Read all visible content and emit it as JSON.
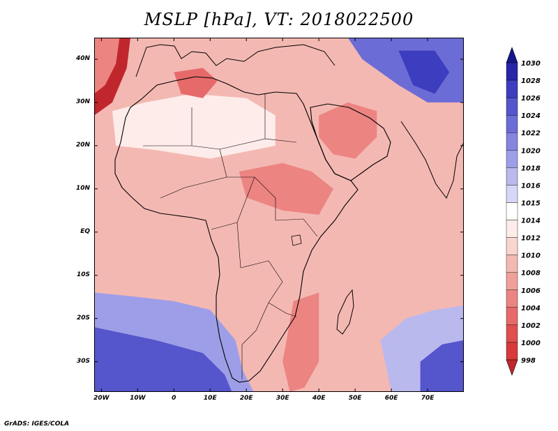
{
  "title": "MSLP [hPa], VT: 2018022500",
  "credit": "GrADS: IGES/COLA",
  "map": {
    "lon_range": [
      -22,
      80
    ],
    "lat_range": [
      -37,
      45
    ],
    "lon_ticks": [
      {
        "value": -20,
        "label": "20W"
      },
      {
        "value": -10,
        "label": "10W"
      },
      {
        "value": 0,
        "label": "0"
      },
      {
        "value": 10,
        "label": "10E"
      },
      {
        "value": 20,
        "label": "20E"
      },
      {
        "value": 30,
        "label": "30E"
      },
      {
        "value": 40,
        "label": "40E"
      },
      {
        "value": 50,
        "label": "50E"
      },
      {
        "value": 60,
        "label": "60E"
      },
      {
        "value": 70,
        "label": "70E"
      }
    ],
    "lat_ticks": [
      {
        "value": 40,
        "label": "40N"
      },
      {
        "value": 30,
        "label": "30N"
      },
      {
        "value": 20,
        "label": "20N"
      },
      {
        "value": 10,
        "label": "10N"
      },
      {
        "value": 0,
        "label": "EQ"
      },
      {
        "value": -10,
        "label": "10S"
      },
      {
        "value": -20,
        "label": "20S"
      },
      {
        "value": -30,
        "label": "30S"
      }
    ],
    "base_level": 1010,
    "regions": [
      {
        "name": "ocean-low-nw",
        "level": 998,
        "points": [
          [
            -22,
            45
          ],
          [
            -12,
            45
          ],
          [
            -13,
            38
          ],
          [
            -17,
            30
          ],
          [
            -22,
            27
          ]
        ]
      },
      {
        "name": "ocean-low-nw-inner",
        "level": 1006,
        "points": [
          [
            -22,
            45
          ],
          [
            -15,
            45
          ],
          [
            -16,
            39
          ],
          [
            -19,
            34
          ],
          [
            -22,
            32
          ]
        ]
      },
      {
        "name": "south-atlantic-high",
        "level": 1020,
        "points": [
          [
            -22,
            -14
          ],
          [
            -10,
            -15
          ],
          [
            0,
            -16
          ],
          [
            10,
            -18
          ],
          [
            17,
            -25
          ],
          [
            19,
            -32
          ],
          [
            22,
            -37
          ],
          [
            -22,
            -37
          ]
        ]
      },
      {
        "name": "south-atlantic-high-inner",
        "level": 1026,
        "points": [
          [
            -22,
            -22
          ],
          [
            -5,
            -25
          ],
          [
            8,
            -28
          ],
          [
            14,
            -33
          ],
          [
            16,
            -37
          ],
          [
            -22,
            -37
          ]
        ]
      },
      {
        "name": "indian-ocean-high",
        "level": 1018,
        "points": [
          [
            60,
            -37
          ],
          [
            57,
            -25
          ],
          [
            64,
            -20
          ],
          [
            72,
            -18
          ],
          [
            80,
            -17
          ],
          [
            80,
            -37
          ]
        ]
      },
      {
        "name": "indian-ocean-high-inner",
        "level": 1026,
        "points": [
          [
            68,
            -37
          ],
          [
            68,
            -30
          ],
          [
            74,
            -26
          ],
          [
            80,
            -25
          ],
          [
            80,
            -37
          ]
        ]
      },
      {
        "name": "asia-high",
        "level": 1024,
        "points": [
          [
            48,
            45
          ],
          [
            80,
            45
          ],
          [
            80,
            30
          ],
          [
            70,
            30
          ],
          [
            62,
            34
          ],
          [
            52,
            40
          ]
        ]
      },
      {
        "name": "asia-high-inner",
        "level": 1028,
        "points": [
          [
            62,
            42
          ],
          [
            72,
            42
          ],
          [
            76,
            37
          ],
          [
            72,
            32
          ],
          [
            66,
            34
          ]
        ]
      },
      {
        "name": "sahara-mild",
        "level": 1014,
        "points": [
          [
            -17,
            28
          ],
          [
            -8,
            30
          ],
          [
            5,
            32
          ],
          [
            20,
            31
          ],
          [
            28,
            27
          ],
          [
            28,
            20
          ],
          [
            10,
            17
          ],
          [
            -5,
            19
          ],
          [
            -16,
            20
          ]
        ]
      },
      {
        "name": "east-africa-low",
        "level": 1006,
        "points": [
          [
            18,
            14
          ],
          [
            30,
            16
          ],
          [
            38,
            14
          ],
          [
            44,
            10
          ],
          [
            40,
            4
          ],
          [
            30,
            5
          ],
          [
            20,
            8
          ]
        ]
      },
      {
        "name": "arabia-low",
        "level": 1006,
        "points": [
          [
            40,
            27
          ],
          [
            48,
            30
          ],
          [
            56,
            28
          ],
          [
            56,
            22
          ],
          [
            50,
            17
          ],
          [
            44,
            18
          ],
          [
            40,
            22
          ]
        ]
      },
      {
        "name": "maghreb-low",
        "level": 1004,
        "points": [
          [
            0,
            37
          ],
          [
            8,
            38
          ],
          [
            12,
            35
          ],
          [
            8,
            31
          ],
          [
            2,
            32
          ]
        ]
      },
      {
        "name": "mozambique-channel-low",
        "level": 1006,
        "points": [
          [
            33,
            -16
          ],
          [
            40,
            -14
          ],
          [
            40,
            -30
          ],
          [
            36,
            -36
          ],
          [
            32,
            -37
          ],
          [
            30,
            -30
          ]
        ]
      }
    ]
  },
  "colorbar": {
    "levels": [
      "998",
      "1000",
      "1002",
      "1004",
      "1006",
      "1008",
      "1010",
      "1012",
      "1014",
      "1015",
      "1016",
      "1018",
      "1020",
      "1022",
      "1024",
      "1026",
      "1028",
      "1030"
    ],
    "colors": [
      "#c0272d",
      "#d73a3a",
      "#e04e4e",
      "#e76a6a",
      "#ec8482",
      "#f0a09b",
      "#f4b8b2",
      "#f9d5d0",
      "#fdecea",
      "#ffffff",
      "#d6d6f5",
      "#b9b9ee",
      "#9e9ee8",
      "#8585e0",
      "#6c6cd7",
      "#5555cc",
      "#3d3dbf",
      "#2626a8",
      "#16168f"
    ],
    "top_label": "1030",
    "bottom_label": "998"
  }
}
